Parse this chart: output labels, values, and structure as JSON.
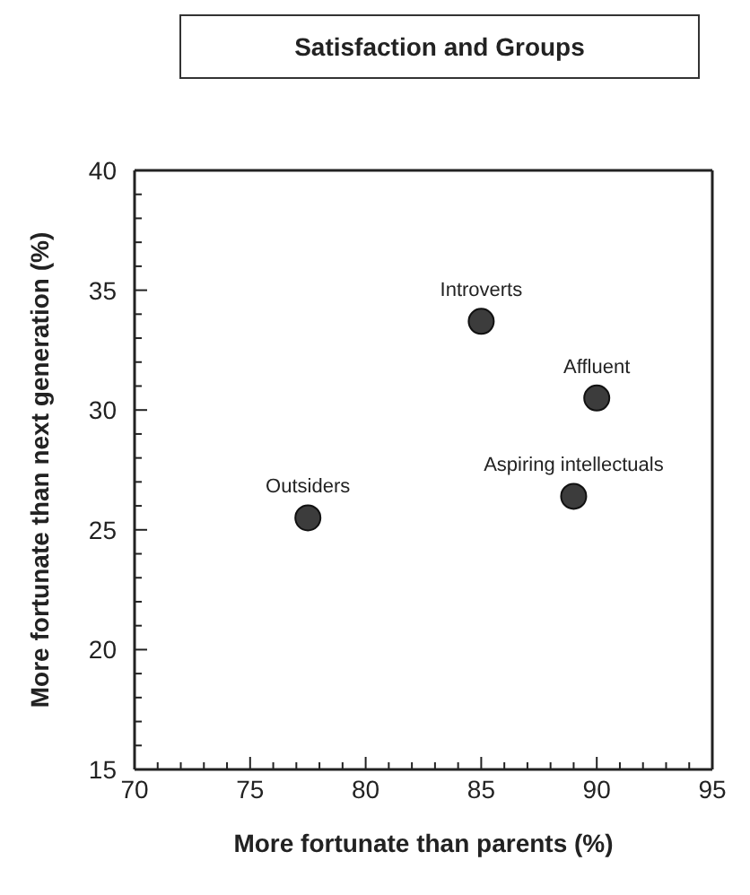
{
  "chart_data": {
    "type": "scatter",
    "title": "Satisfaction and Groups",
    "xlabel": "More fortunate than parents (%)",
    "ylabel": "More fortunate than next generation (%)",
    "x": [
      77.5,
      85,
      90,
      89
    ],
    "values": [
      25.5,
      33.7,
      30.5,
      26.4
    ],
    "color": "#3c3c3c",
    "marker": "circle",
    "grid": false,
    "xlim": [
      70,
      95
    ],
    "xticks": [
      70,
      {
        "value": 71,
        "label": null
      },
      {
        "value": 72,
        "label": null
      },
      {
        "value": 73,
        "label": null
      },
      {
        "value": 74,
        "label": null
      },
      75,
      {
        "value": 76,
        "label": null
      },
      {
        "value": 77,
        "label": null
      },
      {
        "value": 78,
        "label": null
      },
      {
        "value": 79,
        "label": null
      },
      80,
      {
        "value": 81,
        "label": null
      },
      {
        "value": 82,
        "label": null
      },
      {
        "value": 83,
        "label": null
      },
      {
        "value": 84,
        "label": null
      },
      85,
      {
        "value": 86,
        "label": null
      },
      {
        "value": 87,
        "label": null
      },
      {
        "value": 88,
        "label": null
      },
      {
        "value": 89,
        "label": null
      },
      90,
      {
        "value": 91,
        "label": null
      },
      {
        "value": 92,
        "label": null
      },
      {
        "value": 93,
        "label": null
      },
      {
        "value": 94,
        "label": null
      },
      95
    ],
    "ylim": [
      15,
      40
    ],
    "yticks": [
      15,
      {
        "value": 16,
        "label": null
      },
      {
        "value": 17,
        "label": null
      },
      {
        "value": 18,
        "label": null
      },
      {
        "value": 19,
        "label": null
      },
      20,
      {
        "value": 21,
        "label": null
      },
      {
        "value": 22,
        "label": null
      },
      {
        "value": 23,
        "label": null
      },
      {
        "value": 24,
        "label": null
      },
      25,
      {
        "value": 26,
        "label": null
      },
      {
        "value": 27,
        "label": null
      },
      {
        "value": 28,
        "label": null
      },
      {
        "value": 29,
        "label": null
      },
      30,
      {
        "value": 31,
        "label": null
      },
      {
        "value": 32,
        "label": null
      },
      {
        "value": 33,
        "label": null
      },
      {
        "value": 34,
        "label": null
      },
      35,
      {
        "value": 36,
        "label": null
      },
      {
        "value": 37,
        "label": null
      },
      {
        "value": 38,
        "label": null
      },
      {
        "value": 39,
        "label": null
      },
      40
    ],
    "annotations": [
      {
        "text": "Outsiders",
        "x": 77.5,
        "y": 25.5
      },
      {
        "text": "Introverts",
        "x": 85,
        "y": 33.7
      },
      {
        "text": "Affluent",
        "x": 90,
        "y": 30.5
      },
      {
        "text": "Aspiring intellectuals",
        "x": 89,
        "y": 26.4
      }
    ]
  }
}
